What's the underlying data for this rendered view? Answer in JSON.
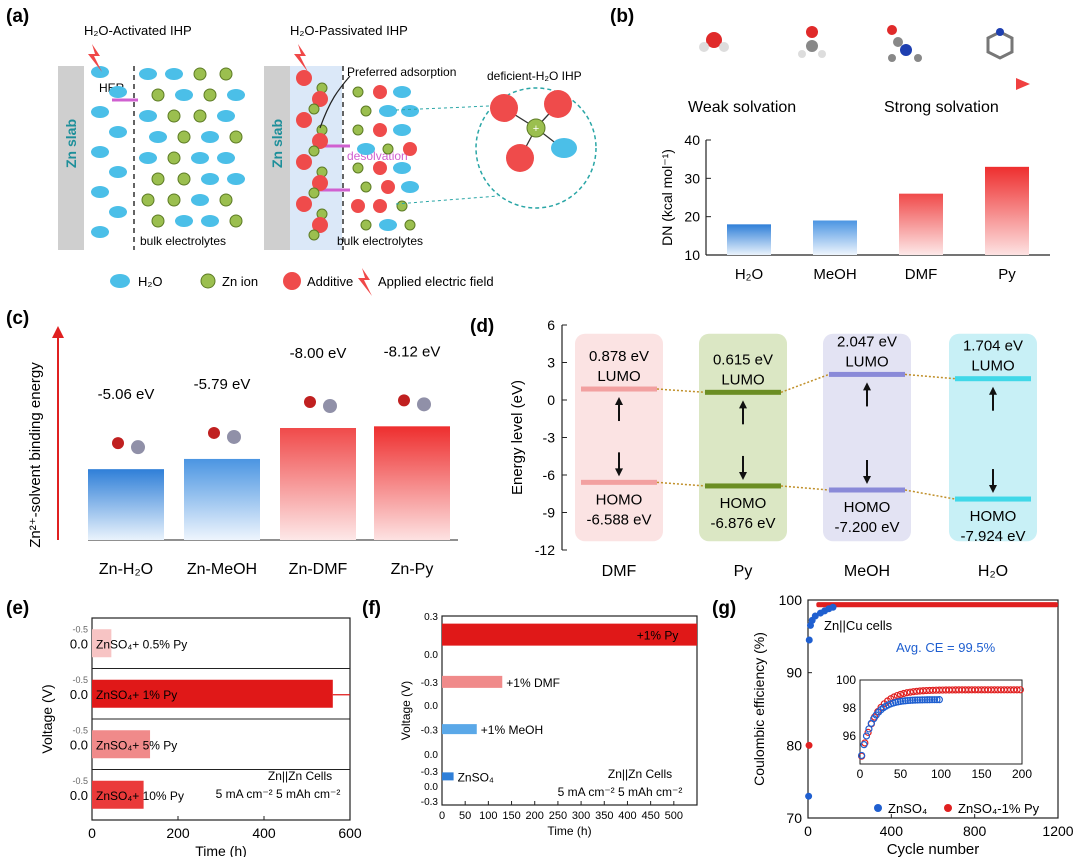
{
  "panels": {
    "a": {
      "label": "(a)",
      "scheme1_title": "H₂O-Activated IHP",
      "scheme2_title": "H₂O-Passivated IHP",
      "slab_label": "Zn slab",
      "her_label": "HER",
      "bulk_label": "bulk electrolytes",
      "preferred_adsorption": "Preferred adsorption",
      "desolvation": "desolvation",
      "deficient_label": "deficient-H₂O IHP",
      "legend": {
        "h2o": "H₂O",
        "zn_ion": "Zn ion",
        "additive": "Additive",
        "field": "Applied electric field"
      }
    },
    "b": {
      "label": "(b)",
      "weak": "Weak solvation",
      "strong": "Strong solvation"
    },
    "c": {
      "label": "(c)"
    },
    "d": {
      "label": "(d)"
    },
    "e": {
      "label": "(e)"
    },
    "f": {
      "label": "(f)"
    },
    "g": {
      "label": "(g)"
    }
  },
  "chart_data": [
    {
      "id": "b",
      "type": "bar",
      "ylabel": "DN (kcal mol⁻¹)",
      "categories": [
        "H₂O",
        "MeOH",
        "DMF",
        "Py"
      ],
      "values": [
        18,
        19,
        26,
        33
      ],
      "ylim": [
        10,
        40
      ],
      "yticks": [
        10,
        20,
        30,
        40
      ],
      "colors": [
        "#3a86d8",
        "#5a9ae0",
        "#f06060",
        "#f03a3a"
      ]
    },
    {
      "id": "c",
      "type": "bar",
      "ylabel": "Zn²⁺-solvent binding energy",
      "categories": [
        "Zn-H₂O",
        "Zn-MeOH",
        "Zn-DMF",
        "Zn-Py"
      ],
      "values": [
        -5.06,
        -5.79,
        -8.0,
        -8.12
      ],
      "value_labels": [
        "-5.06 eV",
        "-5.79 eV",
        "-8.00 eV",
        "-8.12 eV"
      ],
      "colors": [
        "#3a86d8",
        "#5a9ae0",
        "#f06060",
        "#f03a3a"
      ]
    },
    {
      "id": "d",
      "type": "bar",
      "ylabel": "Energy level (eV)",
      "categories": [
        "DMF",
        "Py",
        "MeOH",
        "H₂O"
      ],
      "lumo": [
        0.878,
        0.615,
        2.047,
        1.704
      ],
      "homo": [
        -6.588,
        -6.876,
        -7.2,
        -7.924
      ],
      "lumo_labels": [
        "0.878 eV",
        "0.615 eV",
        "2.047 eV",
        "1.704 eV"
      ],
      "homo_labels": [
        "-6.588 eV",
        "-6.876 eV",
        "-7.200 eV",
        "-7.924 eV"
      ],
      "lumo_text": "LUMO",
      "homo_text": "HOMO",
      "ylim": [
        -12,
        6
      ],
      "yticks": [
        -12,
        -9,
        -6,
        -3,
        0,
        3,
        6
      ],
      "box_colors": [
        "#fbe3e3",
        "#dbe7c4",
        "#e3e3f3",
        "#c8f0f6"
      ],
      "line_colors": [
        "#f2a0a0",
        "#6b8e23",
        "#8a8ad8",
        "#40d8e8"
      ]
    },
    {
      "id": "e",
      "type": "area",
      "ylabel": "Voltage (V)",
      "xlabel": "Time (h)",
      "xlim": [
        0,
        600
      ],
      "xticks": [
        0,
        200,
        400,
        600
      ],
      "series": [
        {
          "name": "ZnSO₄+ 0.5% Py",
          "end_time": 45
        },
        {
          "name": "ZnSO₄+ 1% Py",
          "end_time": 560
        },
        {
          "name": "ZnSO₄+ 5% Py",
          "end_time": 135
        },
        {
          "name": "ZnSO₄+ 10% Py",
          "end_time": 120
        }
      ],
      "ytick_label": "0.0",
      "ytick_small": "-0.5",
      "annotation_1": "Zn||Zn Cells",
      "annotation_2": "5 mA cm⁻²  5 mAh cm⁻²"
    },
    {
      "id": "f",
      "type": "area",
      "ylabel": "Voltage (V)",
      "xlabel": "Time (h)",
      "xlim": [
        0,
        550
      ],
      "xticks": [
        0,
        50,
        100,
        150,
        200,
        250,
        300,
        350,
        400,
        450,
        500
      ],
      "yticks_labels": [
        "0.3",
        "0.0",
        "-0.3",
        "0.0",
        "-0.3",
        "0.0",
        "-0.3",
        "0.0",
        "-0.3"
      ],
      "series": [
        {
          "name": "+1% Py",
          "end_time": 550
        },
        {
          "name": "+1% DMF",
          "end_time": 130
        },
        {
          "name": "+1% MeOH",
          "end_time": 75
        },
        {
          "name": "ZnSO₄",
          "end_time": 25
        }
      ],
      "annotation_1": "Zn||Zn Cells",
      "annotation_2": "5 mA cm⁻²  5 mAh cm⁻²"
    },
    {
      "id": "g",
      "type": "scatter",
      "ylabel": "Coulombic efficiency (%)",
      "xlabel": "Cycle number",
      "xlim": [
        0,
        1200
      ],
      "ylim": [
        70,
        100
      ],
      "xticks": [
        0,
        400,
        800,
        1200
      ],
      "yticks": [
        70,
        80,
        90,
        100
      ],
      "title_text": "Zn||Cu cells",
      "avg_ce": "Avg. CE = 99.5%",
      "series": [
        {
          "name": "ZnSO₄",
          "color": "#1f5fd0"
        },
        {
          "name": "ZnSO₄-1% Py",
          "color": "#e02020"
        }
      ],
      "inset": {
        "xlim": [
          0,
          200
        ],
        "ylim": [
          94,
          100
        ],
        "xticks": [
          0,
          50,
          100,
          150,
          200
        ],
        "yticks": [
          96,
          98,
          100
        ]
      }
    }
  ]
}
